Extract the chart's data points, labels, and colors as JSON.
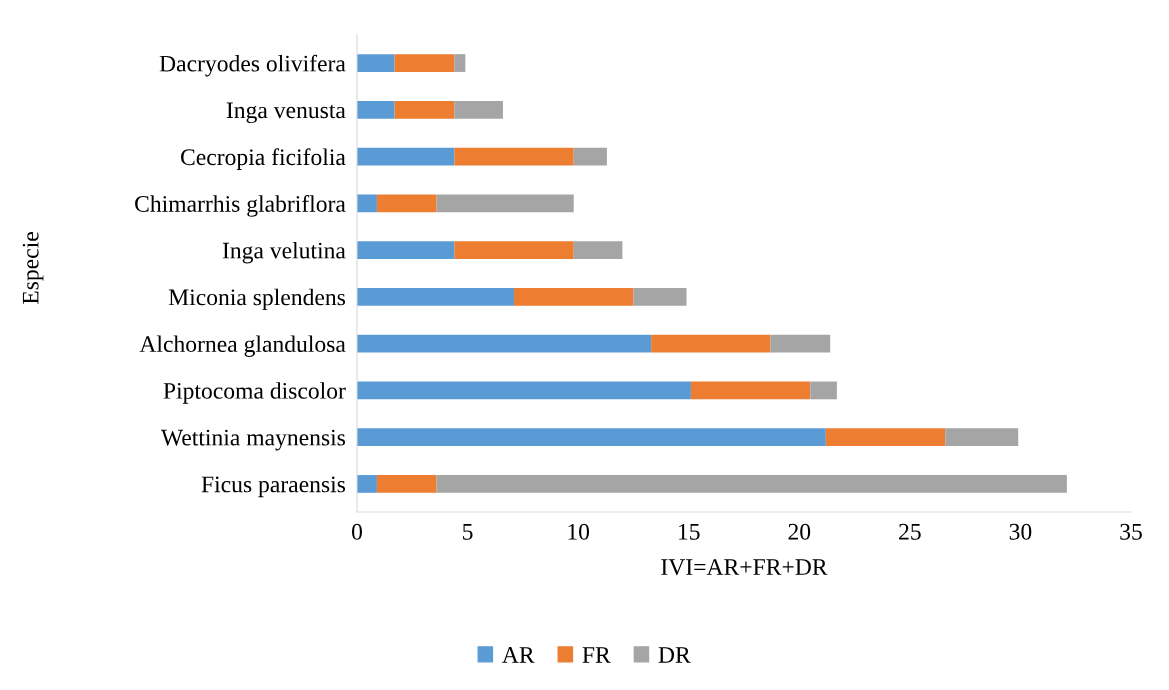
{
  "chart_data": {
    "type": "bar",
    "orientation": "horizontal",
    "stacked": true,
    "xlabel": "IVI=AR+FR+DR",
    "ylabel": "Especie",
    "categories": [
      "Dacryodes olivifera",
      "Inga venusta",
      "Cecropia ficifolia",
      "Chimarrhis glabriflora",
      "Inga velutina",
      "Miconia splendens",
      "Alchornea glandulosa",
      "Piptocoma discolor",
      "Wettinia maynensis",
      "Ficus paraensis"
    ],
    "series": [
      {
        "name": "AR",
        "color": "#5b9bd5",
        "values": [
          1.7,
          1.7,
          4.4,
          0.9,
          4.4,
          7.1,
          13.3,
          15.1,
          21.2,
          0.9
        ]
      },
      {
        "name": "FR",
        "color": "#ed7d31",
        "values": [
          2.7,
          2.7,
          5.4,
          2.7,
          5.4,
          5.4,
          5.4,
          5.4,
          5.4,
          2.7
        ]
      },
      {
        "name": "DR",
        "color": "#a5a5a5",
        "values": [
          0.5,
          2.2,
          1.5,
          6.2,
          2.2,
          2.4,
          2.7,
          1.2,
          3.3,
          28.5
        ]
      }
    ],
    "xlim": [
      0,
      35
    ],
    "xticks": [
      0,
      5,
      10,
      15,
      20,
      25,
      30,
      35
    ],
    "grid": false,
    "legend": "bottom"
  }
}
